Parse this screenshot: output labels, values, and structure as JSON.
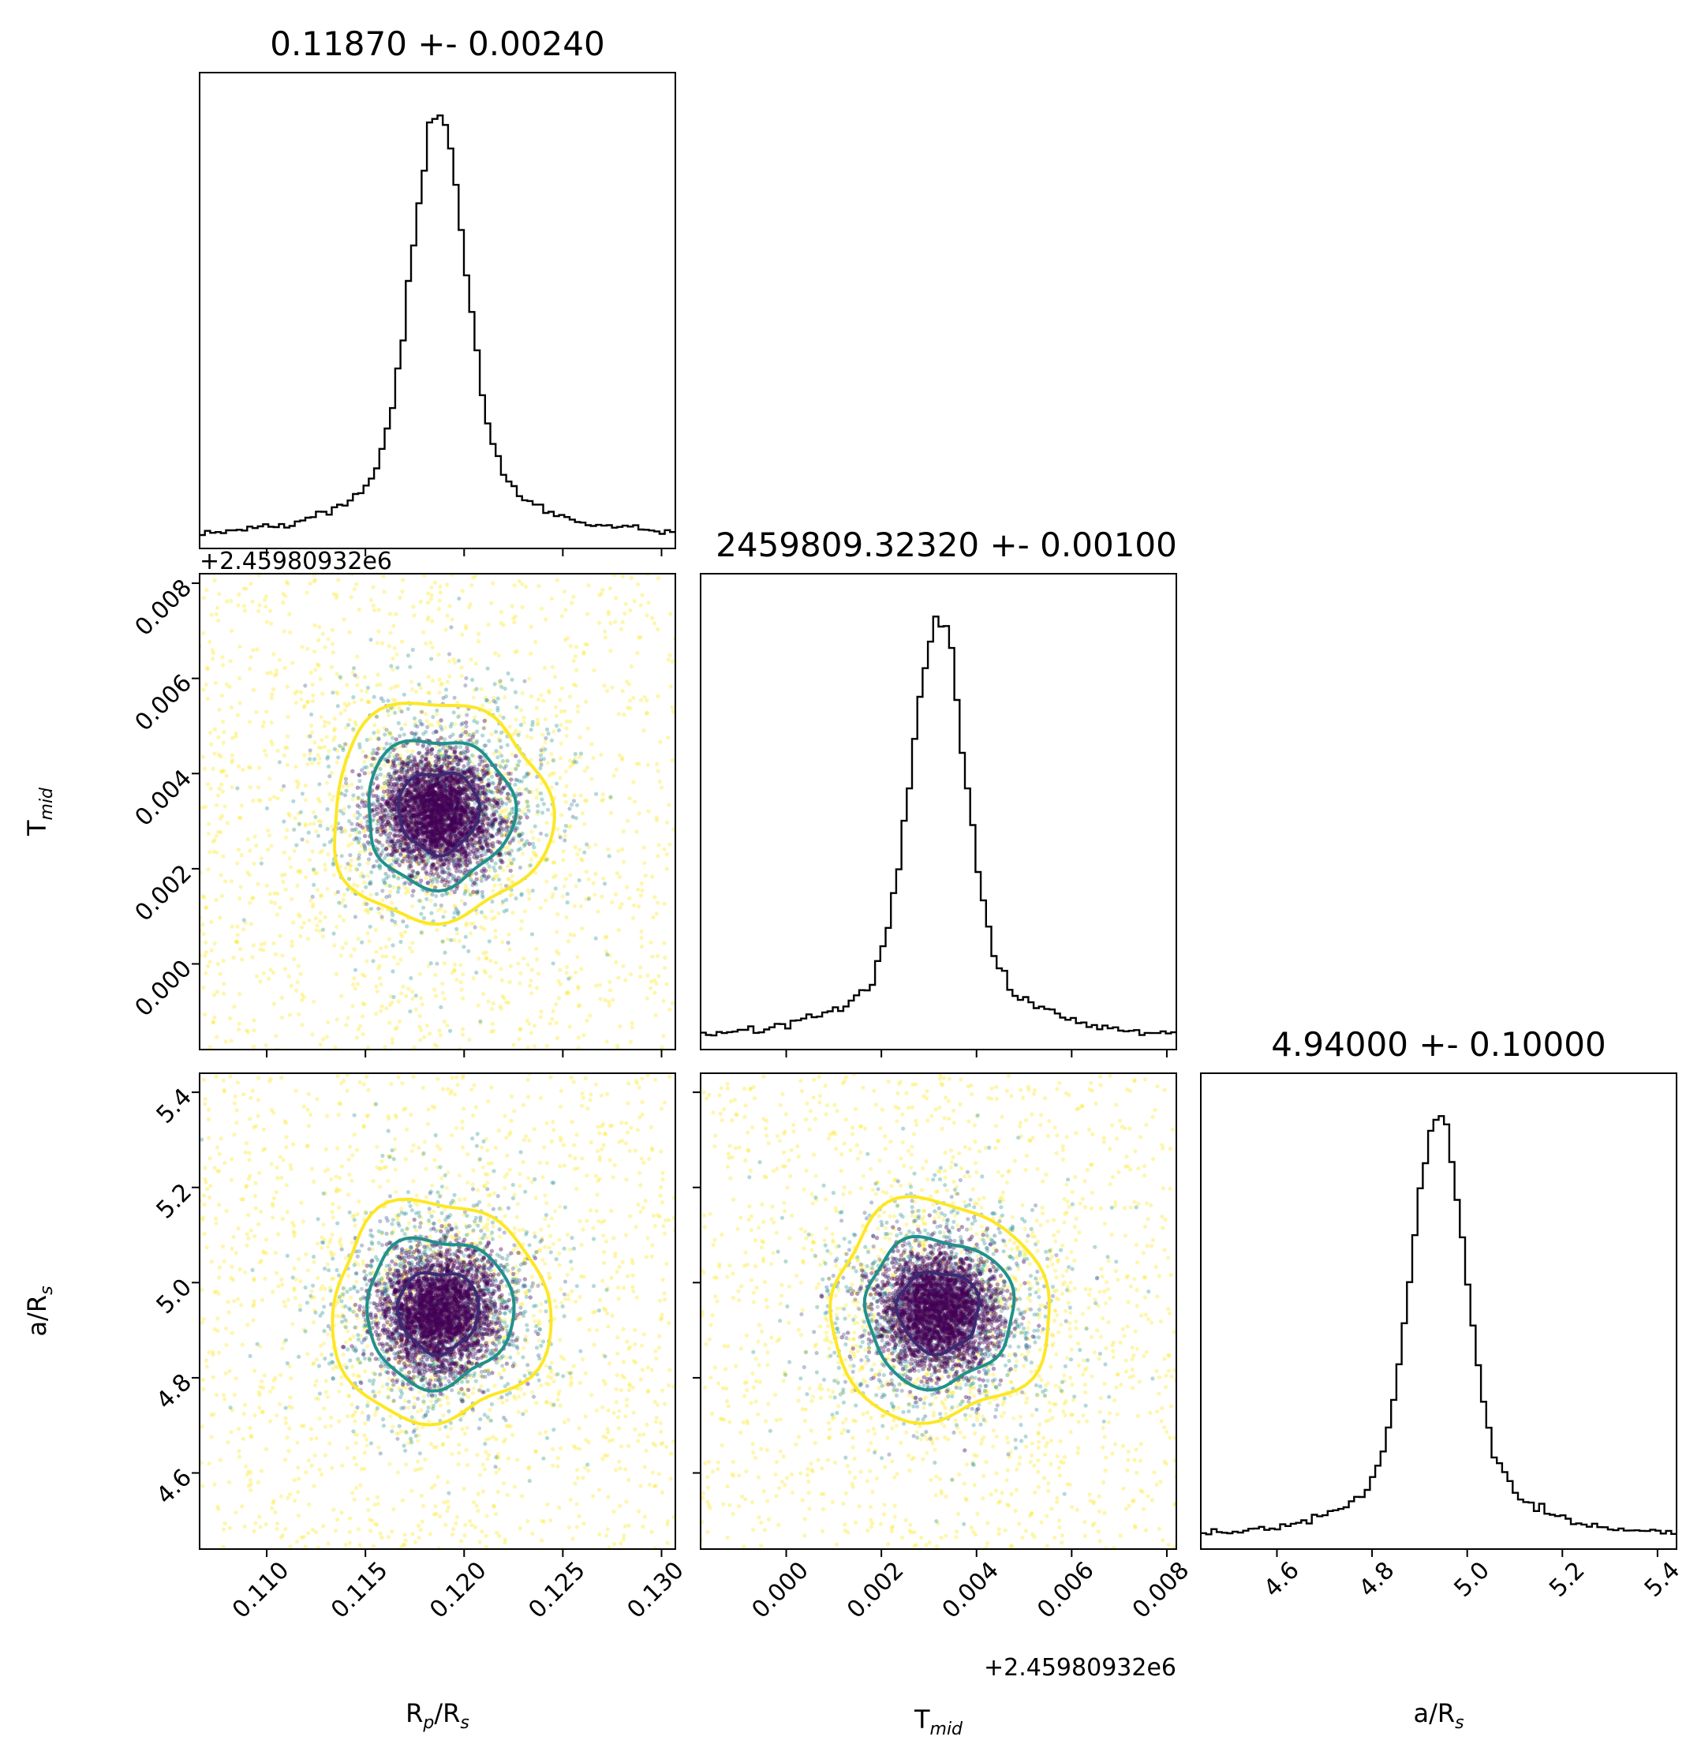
{
  "chart_data": {
    "type": "scatter",
    "kind": "corner-plot",
    "parameters": [
      {
        "key": "rp_rs",
        "title": "0.11870 +- 0.00240",
        "label": "R_p/R_s",
        "label_main": "R",
        "label_sub": "p",
        "label_mid": "/R",
        "label_sub2": "s",
        "median": 0.1187,
        "sigma": 0.0024,
        "range": [
          0.1066,
          0.1307
        ],
        "ticks": [
          "0.110",
          "0.115",
          "0.120",
          "0.125",
          "0.130"
        ],
        "tick_values": [
          0.11,
          0.115,
          0.12,
          0.125,
          0.13
        ]
      },
      {
        "key": "tmid",
        "title": "2459809.32320 +- 0.00100",
        "label": "T_mid",
        "label_main": "T",
        "label_sub": "mid",
        "offset_text": "+2.45980932e6",
        "median": 0.0032,
        "sigma": 0.001,
        "range": [
          -0.0018,
          0.0082
        ],
        "ticks": [
          "0.000",
          "0.002",
          "0.004",
          "0.006",
          "0.008"
        ],
        "tick_values": [
          0.0,
          0.002,
          0.004,
          0.006,
          0.008
        ]
      },
      {
        "key": "a_rs",
        "title": "4.94000 +- 0.10000",
        "label": "a/R_s",
        "label_main": "a/R",
        "label_sub": "s",
        "median": 4.94,
        "sigma": 0.1,
        "range": [
          4.44,
          5.44
        ],
        "ticks": [
          "4.6",
          "4.8",
          "5.0",
          "5.2",
          "5.4"
        ],
        "tick_values": [
          4.6,
          4.8,
          5.0,
          5.2,
          5.4
        ]
      }
    ],
    "contour_colors": [
      "#3b2a73",
      "#21918c",
      "#fde725"
    ],
    "point_colors": [
      "#440154",
      "#21918c",
      "#fde725"
    ],
    "histogram_color": "#000000",
    "grid": false
  }
}
